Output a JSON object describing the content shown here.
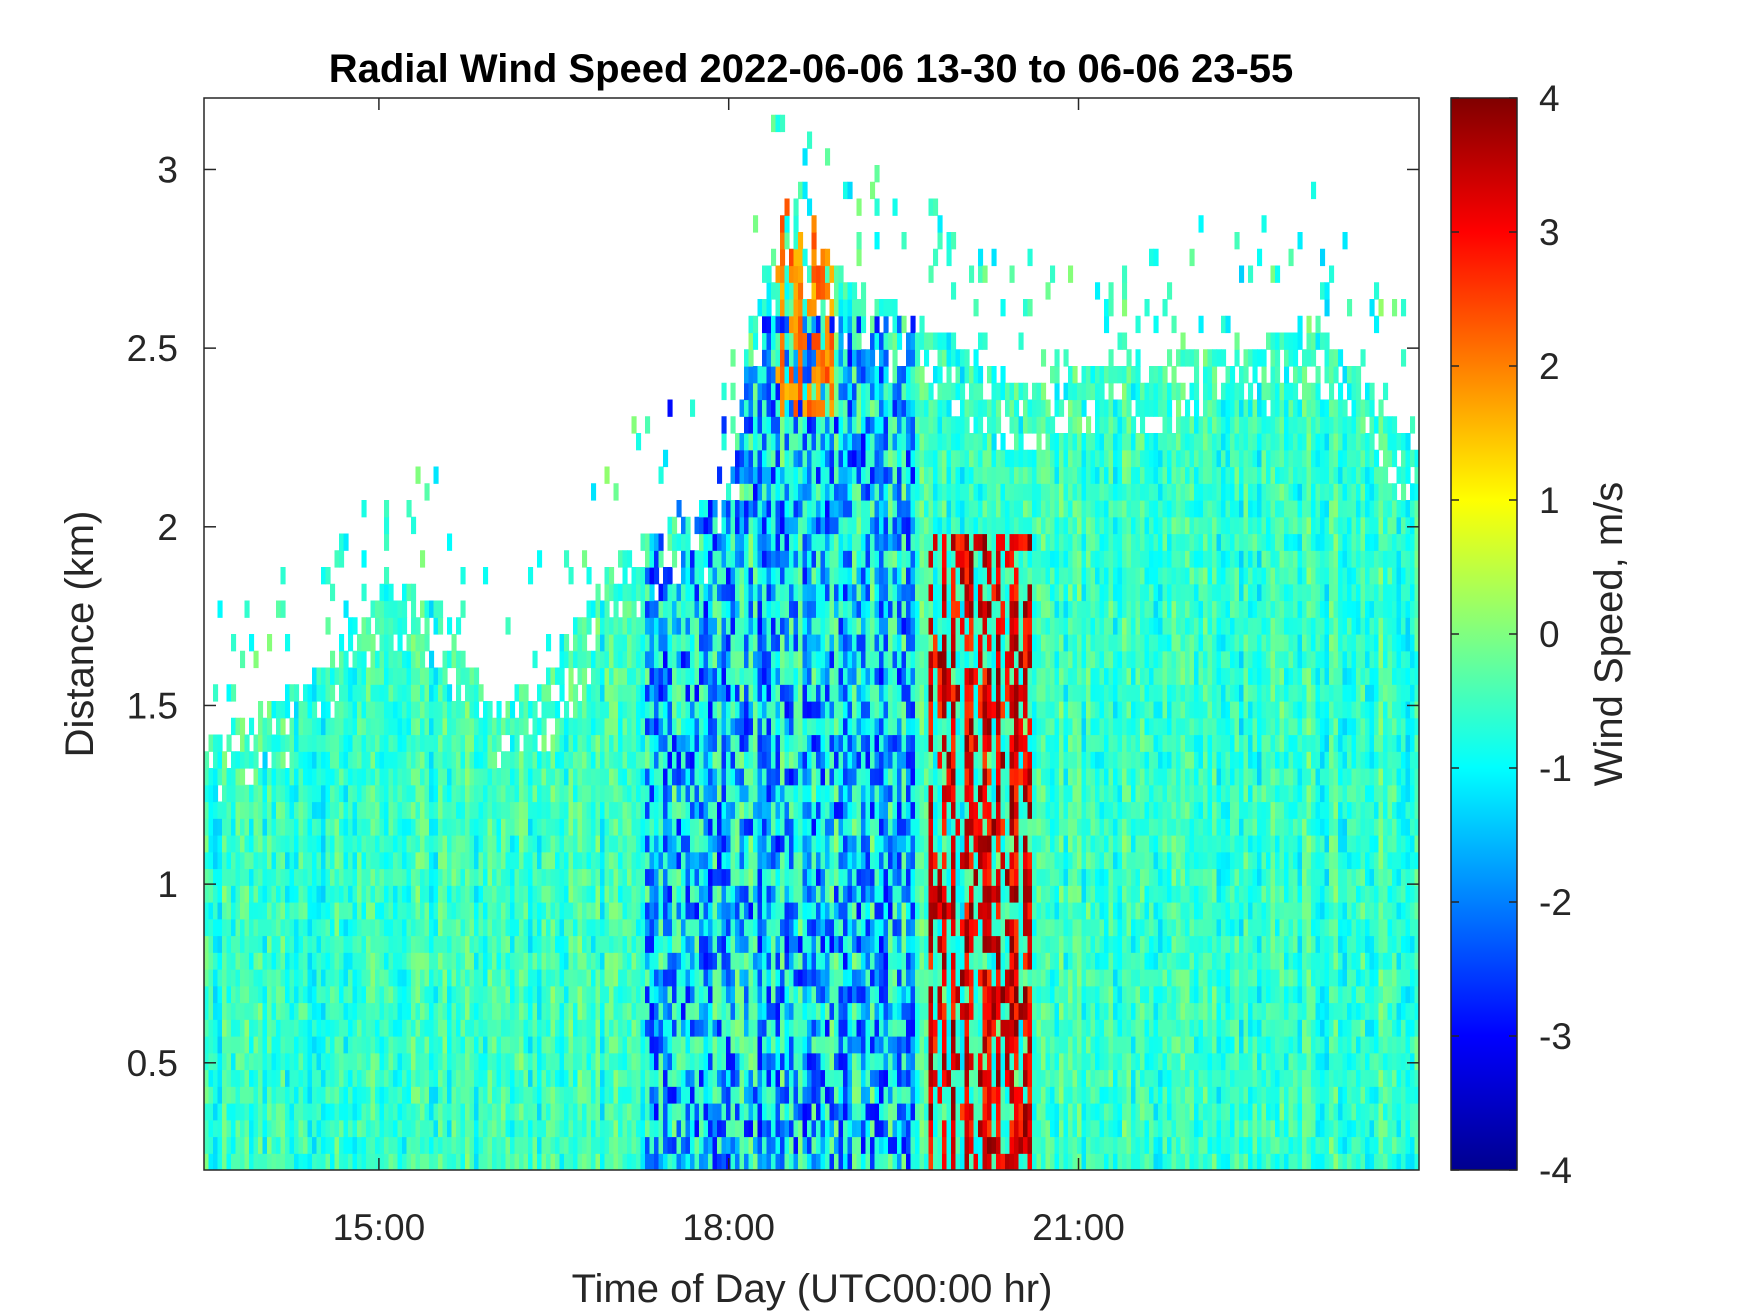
{
  "chart_data": {
    "type": "heatmap",
    "title": "Radial Wind Speed 2022-06-06 13-30 to 06-06 23-55",
    "xlabel": "Time of Day (UTC00:00 hr)",
    "ylabel": "Distance (km)",
    "colorbar_label": "Wind Speed, m/s",
    "colormap": "jet",
    "x_range_hours": [
      13.5,
      23.92
    ],
    "y_range_km": [
      0.2,
      3.2
    ],
    "c_range": [
      -4,
      4
    ],
    "x_ticks": [
      {
        "value": 15,
        "label": "15:00"
      },
      {
        "value": 18,
        "label": "18:00"
      },
      {
        "value": 21,
        "label": "21:00"
      }
    ],
    "y_ticks": [
      {
        "value": 0.5,
        "label": "0.5"
      },
      {
        "value": 1,
        "label": "1"
      },
      {
        "value": 1.5,
        "label": "1.5"
      },
      {
        "value": 2,
        "label": "2"
      },
      {
        "value": 2.5,
        "label": "2.5"
      },
      {
        "value": 3,
        "label": "3"
      }
    ],
    "c_ticks": [
      {
        "value": 4,
        "label": "4"
      },
      {
        "value": 3,
        "label": "3"
      },
      {
        "value": 2,
        "label": "2"
      },
      {
        "value": 1,
        "label": "1"
      },
      {
        "value": 0,
        "label": "0"
      },
      {
        "value": -1,
        "label": "-1"
      },
      {
        "value": -2,
        "label": "-2"
      },
      {
        "value": -3,
        "label": "-3"
      },
      {
        "value": -4,
        "label": "-4"
      }
    ],
    "data_extent_km": {
      "description": "approximate upper limit of valid data versus time",
      "time_hours": [
        13.5,
        14.0,
        14.5,
        15.0,
        15.5,
        16.0,
        16.5,
        17.0,
        17.5,
        18.0,
        18.2,
        18.5,
        19.0,
        19.5,
        20.0,
        20.5,
        21.0,
        21.5,
        22.0,
        22.5,
        23.0,
        23.5,
        23.92
      ],
      "top_km": [
        1.4,
        1.5,
        1.6,
        1.85,
        1.8,
        1.5,
        1.6,
        1.9,
        2.0,
        2.1,
        2.6,
        2.9,
        2.7,
        2.6,
        2.5,
        2.4,
        2.45,
        2.45,
        2.5,
        2.5,
        2.6,
        2.4,
        2.2
      ]
    },
    "notable_features": [
      {
        "label": "strong positive (red) vertical streaks",
        "time_hours": [
          19.7,
          20.6
        ],
        "distance_km": [
          0.2,
          2.0
        ],
        "value_ms": [
          2.5,
          4
        ]
      },
      {
        "label": "negative (blue) band",
        "time_hours": [
          17.3,
          19.6
        ],
        "distance_km": [
          0.2,
          2.6
        ],
        "value_ms": [
          -3,
          -1.5
        ]
      },
      {
        "label": "positive (orange/yellow) cap",
        "time_hours": [
          18.4,
          18.9
        ],
        "distance_km": [
          2.3,
          2.9
        ],
        "value_ms": [
          1.5,
          2.5
        ]
      }
    ]
  }
}
